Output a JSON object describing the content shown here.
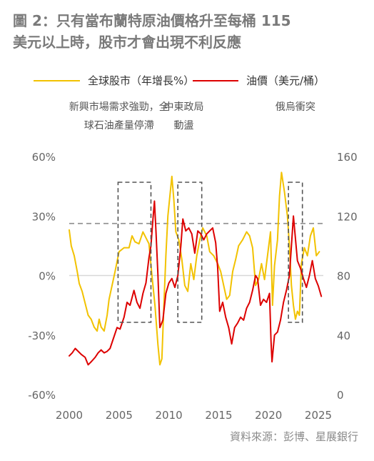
{
  "title_line1": "圖 2：只有當布蘭特原油價格升至每桶 115",
  "title_line2": "美元以上時，股市才會出現不利反應",
  "source": "資料來源：彭博、星展銀行",
  "colors": {
    "equity": "#F2C200",
    "oil": "#DD0000",
    "grid": "#d8d8d8",
    "dash": "#8c8c8c",
    "box": "#555555"
  },
  "chart_data": {
    "type": "line",
    "xlim": [
      2000,
      2025.5
    ],
    "x_ticks": [
      2000,
      2005,
      2010,
      2015,
      2020,
      2025
    ],
    "y_left": {
      "ticks": [
        "60%",
        "30%",
        "0%",
        "-30%",
        "-60%"
      ],
      "values": [
        60,
        30,
        0,
        -30,
        -60
      ],
      "range": [
        -60,
        60
      ]
    },
    "y_right": {
      "ticks": [
        "160",
        "120",
        "80",
        "40",
        "0"
      ],
      "values": [
        160,
        120,
        80,
        40,
        0
      ],
      "range": [
        0,
        160
      ]
    },
    "threshold": {
      "value": 115
    },
    "legend": [
      {
        "key": "equity",
        "label": "全球股市（年增長%）"
      },
      {
        "key": "oil",
        "label": "油價（美元/桶）"
      }
    ],
    "annotations": [
      {
        "lines": [
          "新興市場需求強勁，全",
          "球石油產量停滯"
        ],
        "x_center": 2005.0,
        "box": [
          2004.9,
          2008.2
        ]
      },
      {
        "lines": [
          "中東政局",
          "動盪"
        ],
        "x_center": 2011.5,
        "box": [
          2010.9,
          2013.3
        ]
      },
      {
        "lines": [
          "俄烏衝突"
        ],
        "x_center": 2022.7,
        "box": [
          2022.0,
          2023.4
        ]
      }
    ],
    "series": [
      {
        "key": "equity",
        "name": "全球股市（年增長%）",
        "axis": "left",
        "x": [
          2000,
          2000.2,
          2000.5,
          2000.8,
          2001,
          2001.3,
          2001.6,
          2001.9,
          2002.2,
          2002.5,
          2002.8,
          2003,
          2003.2,
          2003.5,
          2003.8,
          2004,
          2004.3,
          2004.6,
          2005,
          2005.5,
          2006,
          2006.3,
          2006.6,
          2007,
          2007.4,
          2007.8,
          2008,
          2008.3,
          2008.6,
          2008.9,
          2009.1,
          2009.3,
          2009.5,
          2009.7,
          2009.9,
          2010.1,
          2010.3,
          2010.5,
          2010.7,
          2011,
          2011.3,
          2011.6,
          2011.9,
          2012.2,
          2012.5,
          2012.8,
          2013.1,
          2013.4,
          2013.8,
          2014.1,
          2014.5,
          2014.9,
          2015.2,
          2015.5,
          2015.8,
          2016.1,
          2016.4,
          2016.7,
          2017,
          2017.4,
          2017.8,
          2018.1,
          2018.4,
          2018.7,
          2019,
          2019.3,
          2019.6,
          2019.9,
          2020.2,
          2020.4,
          2020.6,
          2020.9,
          2021.1,
          2021.3,
          2021.6,
          2021.9,
          2022.1,
          2022.3,
          2022.5,
          2022.7,
          2022.9,
          2023.1,
          2023.3,
          2023.6,
          2023.9,
          2024.2,
          2024.5,
          2024.8,
          2025.1
        ],
        "y": [
          23,
          15,
          10,
          2,
          -4,
          -8,
          -14,
          -20,
          -22,
          -26,
          -28,
          -22,
          -26,
          -28,
          -20,
          -12,
          -5,
          2,
          12,
          14,
          14,
          20,
          17,
          16,
          22,
          18,
          16,
          0,
          -15,
          -35,
          -45,
          -42,
          -15,
          10,
          30,
          40,
          50,
          38,
          22,
          18,
          8,
          -5,
          -8,
          6,
          -2,
          10,
          18,
          24,
          20,
          12,
          10,
          6,
          2,
          -5,
          -12,
          -10,
          2,
          8,
          15,
          18,
          22,
          20,
          14,
          -5,
          -2,
          6,
          -2,
          10,
          22,
          -15,
          5,
          18,
          40,
          52,
          42,
          30,
          15,
          -5,
          -15,
          -22,
          -18,
          -20,
          6,
          14,
          10,
          20,
          24,
          10,
          12
        ]
      },
      {
        "key": "oil",
        "name": "油價（美元/桶）",
        "axis": "right",
        "x": [
          2000,
          2000.3,
          2000.6,
          2000.9,
          2001.2,
          2001.6,
          2001.9,
          2002.2,
          2002.6,
          2002.9,
          2003.2,
          2003.5,
          2003.8,
          2004.1,
          2004.4,
          2004.8,
          2005.1,
          2005.5,
          2005.8,
          2006.1,
          2006.5,
          2006.8,
          2007.1,
          2007.4,
          2007.7,
          2008,
          2008.2,
          2008.4,
          2008.55,
          2008.7,
          2008.9,
          2009.1,
          2009.4,
          2009.7,
          2010,
          2010.3,
          2010.6,
          2010.9,
          2011.2,
          2011.4,
          2011.7,
          2012,
          2012.3,
          2012.6,
          2012.9,
          2013.2,
          2013.5,
          2013.8,
          2014.1,
          2014.4,
          2014.7,
          2014.9,
          2015.1,
          2015.4,
          2015.7,
          2016,
          2016.3,
          2016.6,
          2016.9,
          2017.2,
          2017.5,
          2017.8,
          2018.1,
          2018.4,
          2018.7,
          2018.9,
          2019.2,
          2019.5,
          2019.8,
          2020.1,
          2020.25,
          2020.35,
          2020.6,
          2020.9,
          2021.2,
          2021.5,
          2021.8,
          2022.1,
          2022.3,
          2022.5,
          2022.7,
          2022.9,
          2023.2,
          2023.5,
          2023.8,
          2024.1,
          2024.4,
          2024.7,
          2025.0,
          2025.3
        ],
        "y": [
          26,
          28,
          31,
          29,
          27,
          25,
          20,
          22,
          25,
          28,
          30,
          28,
          29,
          31,
          37,
          45,
          44,
          52,
          62,
          60,
          70,
          62,
          58,
          68,
          75,
          92,
          100,
          118,
          130,
          110,
          80,
          45,
          50,
          68,
          75,
          78,
          72,
          80,
          100,
          118,
          110,
          112,
          108,
          95,
          110,
          108,
          104,
          108,
          110,
          112,
          102,
          85,
          56,
          62,
          52,
          45,
          34,
          45,
          48,
          52,
          50,
          58,
          62,
          70,
          80,
          78,
          60,
          64,
          62,
          68,
          36,
          22,
          40,
          42,
          50,
          62,
          70,
          80,
          100,
          120,
          105,
          90,
          85,
          78,
          72,
          80,
          90,
          78,
          73,
          66
        ]
      }
    ]
  }
}
